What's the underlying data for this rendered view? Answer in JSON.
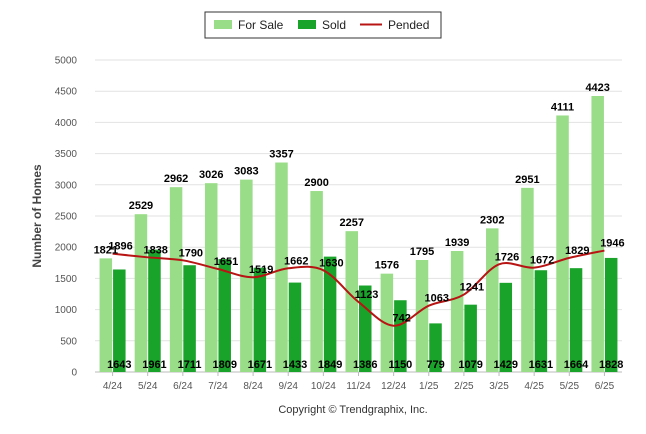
{
  "chart_data": {
    "type": "bar",
    "categories": [
      "4/24",
      "5/24",
      "6/24",
      "7/24",
      "8/24",
      "9/24",
      "10/24",
      "11/24",
      "12/24",
      "1/25",
      "2/25",
      "3/25",
      "4/25",
      "5/25",
      "6/25"
    ],
    "series": [
      {
        "name": "For Sale",
        "type": "bar",
        "color": "#99dd88",
        "values": [
          1821,
          2529,
          2962,
          3026,
          3083,
          3357,
          2900,
          2257,
          1576,
          1795,
          1939,
          2302,
          2951,
          4111,
          4423
        ]
      },
      {
        "name": "Sold",
        "type": "bar",
        "color": "#1aa32a",
        "values": [
          1643,
          1961,
          1711,
          1809,
          1671,
          1433,
          1849,
          1386,
          1150,
          779,
          1079,
          1429,
          1631,
          1664,
          1828
        ]
      },
      {
        "name": "Pended",
        "type": "line",
        "color": "#b81414",
        "values": [
          1896,
          1838,
          1790,
          1651,
          1519,
          1662,
          1630,
          1123,
          742,
          1063,
          1241,
          1726,
          1672,
          1829,
          1946
        ]
      }
    ],
    "ylabel": "Number of Homes",
    "xlabel": "",
    "ylim": [
      0,
      5000
    ],
    "yticks": [
      0,
      500,
      1000,
      1500,
      2000,
      2500,
      3000,
      3500,
      4000,
      4500,
      5000
    ],
    "grid": true,
    "legend_position": "top-center"
  },
  "footer": {
    "copyright": "Copyright © Trendgraphix, Inc."
  }
}
